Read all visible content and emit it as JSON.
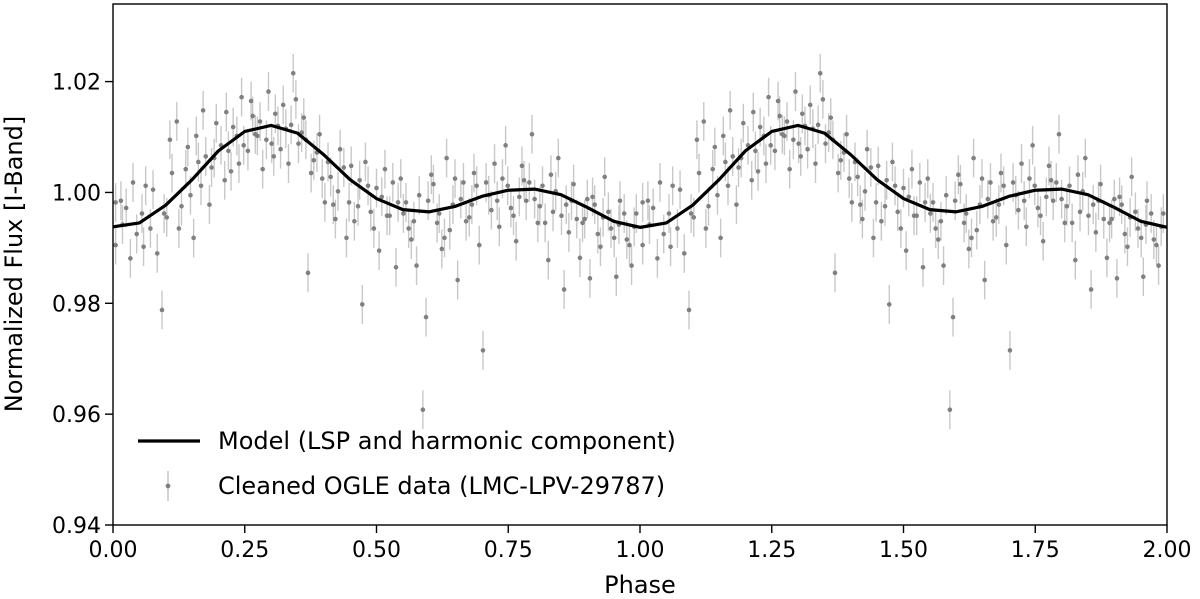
{
  "chart_data": {
    "type": "scatter",
    "title": "",
    "xlabel": "Phase",
    "ylabel": "Normalized Flux [I-Band]",
    "xlim": [
      0.0,
      2.0
    ],
    "ylim": [
      0.94,
      1.034
    ],
    "x_ticks": [
      0.0,
      0.25,
      0.5,
      0.75,
      1.0,
      1.25,
      1.5,
      1.75,
      2.0
    ],
    "x_tick_labels": [
      "0.00",
      "0.25",
      "0.50",
      "0.75",
      "1.00",
      "1.25",
      "1.50",
      "1.75",
      "2.00"
    ],
    "y_ticks": [
      0.94,
      0.96,
      0.98,
      1.0,
      1.02
    ],
    "y_tick_labels": [
      "0.94",
      "0.96",
      "0.98",
      "1.00",
      "1.02"
    ],
    "grid": false,
    "legend_position": "lower-left",
    "series": [
      {
        "name": "Model (LSP and harmonic component)",
        "kind": "line",
        "color": "#000000",
        "x": [
          0.0,
          0.05,
          0.1,
          0.15,
          0.2,
          0.25,
          0.3,
          0.35,
          0.4,
          0.45,
          0.5,
          0.55,
          0.6,
          0.65,
          0.7,
          0.75,
          0.8,
          0.85,
          0.9,
          0.95,
          1.0,
          1.05,
          1.1,
          1.15,
          1.2,
          1.25,
          1.3,
          1.35,
          1.4,
          1.45,
          1.5,
          1.55,
          1.6,
          1.65,
          1.7,
          1.75,
          1.8,
          1.85,
          1.9,
          1.95,
          2.0
        ],
        "y": [
          0.9938,
          0.9945,
          0.9977,
          1.0023,
          1.0075,
          1.011,
          1.0121,
          1.0107,
          1.0068,
          1.0023,
          0.9989,
          0.9969,
          0.9965,
          0.9975,
          0.9993,
          1.0004,
          1.0006,
          0.9996,
          0.9973,
          0.9948,
          0.9937,
          0.9945,
          0.9977,
          1.0023,
          1.0075,
          1.011,
          1.0121,
          1.0107,
          1.0068,
          1.0023,
          0.9989,
          0.9969,
          0.9965,
          0.9975,
          0.9993,
          1.0004,
          1.0006,
          0.9996,
          0.9973,
          0.9948,
          0.9937
        ]
      },
      {
        "name": "Cleaned OGLE data (LMC-LPV-29787)",
        "kind": "errorbar",
        "color": "#808080",
        "errorbar_color": "#c8c8c8",
        "typical_error": 0.0035,
        "points": [
          [
            0.005,
            0.9905
          ],
          [
            0.015,
            0.9985
          ],
          [
            0.025,
            0.9972
          ],
          [
            0.033,
            0.9881
          ],
          [
            0.045,
            0.9925
          ],
          [
            0.055,
            0.9962
          ],
          [
            0.062,
            1.0012
          ],
          [
            0.071,
            0.9935
          ],
          [
            0.084,
            0.989
          ],
          [
            0.093,
            0.9788
          ],
          [
            0.102,
            0.9955
          ],
          [
            0.112,
            1.0035
          ],
          [
            0.121,
            1.0128
          ],
          [
            0.13,
            0.9975
          ],
          [
            0.142,
            1.0082
          ],
          [
            0.153,
            0.9918
          ],
          [
            0.162,
            1.0055
          ],
          [
            0.171,
            1.0148
          ],
          [
            0.183,
            0.9978
          ],
          [
            0.192,
            1.0062
          ],
          [
            0.205,
            1.0085
          ],
          [
            0.215,
            1.0145
          ],
          [
            0.224,
            1.0038
          ],
          [
            0.235,
            1.0102
          ],
          [
            0.244,
            1.0172
          ],
          [
            0.256,
            1.0075
          ],
          [
            0.265,
            1.0138
          ],
          [
            0.274,
            1.0102
          ],
          [
            0.284,
            1.0042
          ],
          [
            0.295,
            1.0182
          ],
          [
            0.305,
            1.0065
          ],
          [
            0.313,
            1.012
          ],
          [
            0.323,
            1.0158
          ],
          [
            0.333,
            1.0052
          ],
          [
            0.342,
            1.0215
          ],
          [
            0.352,
            1.0088
          ],
          [
            0.362,
            1.0135
          ],
          [
            0.37,
            0.9855
          ],
          [
            0.381,
            1.0058
          ],
          [
            0.392,
            1.0105
          ],
          [
            0.402,
            0.9982
          ],
          [
            0.413,
            1.0028
          ],
          [
            0.422,
            0.9952
          ],
          [
            0.431,
            1.0078
          ],
          [
            0.443,
            0.9918
          ],
          [
            0.452,
            1.0048
          ],
          [
            0.465,
            0.9975
          ],
          [
            0.473,
            0.9798
          ],
          [
            0.484,
            1.0012
          ],
          [
            0.495,
            0.9935
          ],
          [
            0.505,
            0.9895
          ],
          [
            0.516,
            1.0042
          ],
          [
            0.525,
            0.9958
          ],
          [
            0.537,
            0.9865
          ],
          [
            0.546,
            1.0025
          ],
          [
            0.556,
            0.9982
          ],
          [
            0.566,
            0.9915
          ],
          [
            0.576,
            0.9868
          ],
          [
            0.588,
            0.9608
          ],
          [
            0.594,
            0.9775
          ],
          [
            0.604,
            1.0032
          ],
          [
            0.615,
            0.9945
          ],
          [
            0.624,
            0.9898
          ],
          [
            0.633,
            1.0062
          ],
          [
            0.645,
            0.9978
          ],
          [
            0.654,
            0.9842
          ],
          [
            0.665,
            1.0018
          ],
          [
            0.676,
            0.9955
          ],
          [
            0.685,
            1.0035
          ],
          [
            0.695,
            0.9905
          ],
          [
            0.702,
            0.9715
          ],
          [
            0.713,
            0.9995
          ],
          [
            0.724,
            1.0052
          ],
          [
            0.733,
            0.9938
          ],
          [
            0.745,
            1.0085
          ],
          [
            0.755,
            0.9972
          ],
          [
            0.765,
            0.9912
          ],
          [
            0.776,
            1.0048
          ],
          [
            0.784,
            0.9985
          ],
          [
            0.795,
            1.0105
          ],
          [
            0.806,
            0.9945
          ],
          [
            0.815,
            1.0012
          ],
          [
            0.826,
            0.9878
          ],
          [
            0.835,
            0.9965
          ],
          [
            0.845,
            1.0062
          ],
          [
            0.856,
            0.9825
          ],
          [
            0.865,
            0.9928
          ],
          [
            0.874,
            1.0015
          ],
          [
            0.886,
            0.9882
          ],
          [
            0.895,
            0.9952
          ],
          [
            0.905,
            0.9845
          ],
          [
            0.914,
            0.9978
          ],
          [
            0.925,
            0.9902
          ],
          [
            0.933,
            1.0028
          ],
          [
            0.945,
            0.9935
          ],
          [
            0.955,
            0.9848
          ],
          [
            0.962,
            0.9985
          ],
          [
            0.975,
            0.9915
          ],
          [
            0.984,
            0.9868
          ],
          [
            0.993,
            0.9962
          ],
          [
            0.005,
            0.9982
          ],
          [
            0.018,
            0.9942
          ],
          [
            0.038,
            1.0018
          ],
          [
            0.058,
            0.9902
          ],
          [
            0.076,
            1.0005
          ],
          [
            0.097,
            0.9962
          ],
          [
            0.108,
            1.0095
          ],
          [
            0.125,
            0.9935
          ],
          [
            0.138,
            1.0042
          ],
          [
            0.158,
            1.0102
          ],
          [
            0.176,
            1.0065
          ],
          [
            0.196,
            1.0125
          ],
          [
            0.212,
            1.0022
          ],
          [
            0.228,
            1.0118
          ],
          [
            0.248,
            1.0085
          ],
          [
            0.262,
            1.0165
          ],
          [
            0.279,
            1.0128
          ],
          [
            0.291,
            1.0095
          ],
          [
            0.308,
            1.0142
          ],
          [
            0.318,
            1.0078
          ],
          [
            0.338,
            1.0122
          ],
          [
            0.347,
            1.0168
          ],
          [
            0.358,
            1.0108
          ],
          [
            0.376,
            1.0035
          ],
          [
            0.387,
            1.0072
          ],
          [
            0.408,
            1.0055
          ],
          [
            0.427,
            1.0002
          ],
          [
            0.448,
            0.9982
          ],
          [
            0.468,
            1.0022
          ],
          [
            0.489,
            0.9965
          ],
          [
            0.51,
            0.9992
          ],
          [
            0.531,
            1.0018
          ],
          [
            0.551,
            0.9962
          ],
          [
            0.571,
            0.9948
          ],
          [
            0.598,
            0.9985
          ],
          [
            0.619,
            0.9962
          ],
          [
            0.639,
            0.9932
          ],
          [
            0.66,
            0.9988
          ],
          [
            0.681,
            0.9978
          ],
          [
            0.708,
            1.0018
          ],
          [
            0.729,
            0.9985
          ],
          [
            0.749,
            1.0012
          ],
          [
            0.771,
            0.9992
          ],
          [
            0.79,
            1.0018
          ],
          [
            0.81,
            0.9975
          ],
          [
            0.831,
            1.0032
          ],
          [
            0.851,
            0.9958
          ],
          [
            0.87,
            0.9985
          ],
          [
            0.891,
            0.9945
          ],
          [
            0.91,
            0.9992
          ],
          [
            0.93,
            0.9955
          ],
          [
            0.951,
            0.9918
          ],
          [
            0.97,
            0.9962
          ],
          [
            0.989,
            0.9938
          ],
          [
            0.147,
            0.9995
          ],
          [
            0.167,
            1.0012
          ],
          [
            0.187,
            1.0045
          ],
          [
            0.219,
            1.0075
          ],
          [
            0.239,
            1.0052
          ],
          [
            0.27,
            1.0105
          ],
          [
            0.301,
            1.0088
          ],
          [
            0.328,
            1.0115
          ],
          [
            0.366,
            1.0095
          ],
          [
            0.397,
            1.0025
          ],
          [
            0.418,
            0.9978
          ],
          [
            0.438,
            1.0045
          ],
          [
            0.458,
            0.9948
          ],
          [
            0.479,
            1.0055
          ],
          [
            0.5,
            1.0008
          ],
          [
            0.52,
            0.9958
          ],
          [
            0.541,
            0.9982
          ],
          [
            0.561,
            0.9935
          ],
          [
            0.581,
            0.9995
          ],
          [
            0.608,
            1.0015
          ],
          [
            0.629,
            0.9918
          ],
          [
            0.649,
            1.0025
          ],
          [
            0.67,
            0.9948
          ],
          [
            0.69,
            1.0012
          ],
          [
            0.718,
            0.9968
          ],
          [
            0.739,
            1.0025
          ],
          [
            0.76,
            0.9958
          ],
          [
            0.78,
            1.0022
          ],
          [
            0.8,
            0.9988
          ],
          [
            0.82,
            0.9945
          ],
          [
            0.84,
            1.0002
          ],
          [
            0.86,
            0.9978
          ],
          [
            0.88,
            0.9952
          ],
          [
            0.9,
            0.9988
          ],
          [
            0.92,
            0.9925
          ],
          [
            0.94,
            0.9965
          ],
          [
            0.96,
            0.9942
          ],
          [
            0.98,
            0.9905
          ]
        ]
      }
    ]
  }
}
